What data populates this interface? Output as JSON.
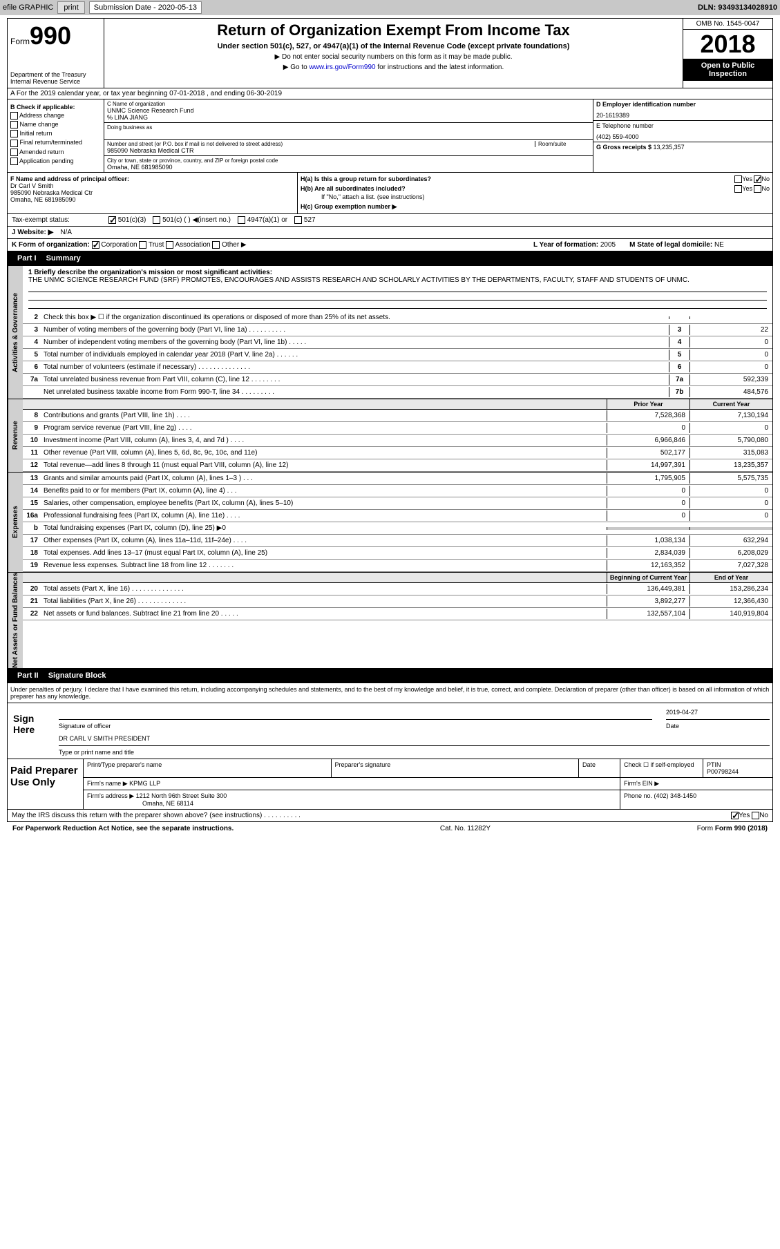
{
  "topbar": {
    "efile": "efile GRAPHIC",
    "print": "print",
    "subdate_label": "Submission Date - ",
    "subdate": "2020-05-13",
    "dln_label": "DLN: ",
    "dln": "93493134028910"
  },
  "header": {
    "form_label": "Form",
    "form_num": "990",
    "dept": "Department of the Treasury\nInternal Revenue Service",
    "title": "Return of Organization Exempt From Income Tax",
    "subtitle": "Under section 501(c), 527, or 4947(a)(1) of the Internal Revenue Code (except private foundations)",
    "note1": "▶ Do not enter social security numbers on this form as it may be made public.",
    "note2a": "▶ Go to ",
    "note2link": "www.irs.gov/Form990",
    "note2b": " for instructions and the latest information.",
    "omb": "OMB No. 1545-0047",
    "year": "2018",
    "insp": "Open to Public Inspection"
  },
  "rowA": "A For the 2019 calendar year, or tax year beginning 07-01-2018   , and ending 06-30-2019",
  "colB": {
    "hdr": "B Check if applicable:",
    "items": [
      "Address change",
      "Name change",
      "Initial return",
      "Final return/terminated",
      "Amended return",
      "Application pending"
    ]
  },
  "colC": {
    "name_label": "C Name of organization",
    "name": "UNMC Science Research Fund",
    "care": "% LINA JIANG",
    "dba_label": "Doing business as",
    "addr_label": "Number and street (or P.O. box if mail is not delivered to street address)",
    "room_label": "Room/suite",
    "addr": "985090 Nebraska Medical CTR",
    "city_label": "City or town, state or province, country, and ZIP or foreign postal code",
    "city": "Omaha, NE  681985090"
  },
  "colD": {
    "ein_label": "D Employer identification number",
    "ein": "20-1619389",
    "tel_label": "E Telephone number",
    "tel": "(402) 559-4000",
    "gross_label": "G Gross receipts $ ",
    "gross": "13,235,357"
  },
  "secF": {
    "label": "F  Name and address of principal officer:",
    "name": "Dr Carl V Smith",
    "addr1": "985090 Nebraska Medical Ctr",
    "addr2": "Omaha, NE  681985090"
  },
  "secH": {
    "ha": "H(a)  Is this a group return for subordinates?",
    "hb": "H(b)  Are all subordinates included?",
    "hb_note": "If \"No,\" attach a list. (see instructions)",
    "hc": "H(c)  Group exemption number ▶"
  },
  "taxexempt": {
    "label": "Tax-exempt status:",
    "o1": "501(c)(3)",
    "o2": "501(c) (  ) ◀(insert no.)",
    "o3": "4947(a)(1) or",
    "o4": "527"
  },
  "website": {
    "label": "J  Website: ▶",
    "val": "N/A"
  },
  "rowK": {
    "k": "K Form of organization:",
    "kopts": [
      "Corporation",
      "Trust",
      "Association",
      "Other ▶"
    ],
    "l": "L Year of formation: ",
    "lval": "2005",
    "m": "M State of legal domicile: ",
    "mval": "NE"
  },
  "part1": {
    "hdr": "Part I",
    "title": "Summary"
  },
  "mission": {
    "q": "1  Briefly describe the organization's mission or most significant activities:",
    "text": "THE UNMC SCIENCE RESEARCH FUND (SRF) PROMOTES, ENCOURAGES AND ASSISTS RESEARCH AND SCHOLARLY ACTIVITIES BY THE DEPARTMENTS, FACULTY, STAFF AND STUDENTS OF UNMC."
  },
  "gov_lines": [
    {
      "n": "2",
      "d": "Check this box ▶ ☐ if the organization discontinued its operations or disposed of more than 25% of its net assets.",
      "box": "",
      "v": ""
    },
    {
      "n": "3",
      "d": "Number of voting members of the governing body (Part VI, line 1a)  .  .  .  .  .  .  .  .  .  .",
      "box": "3",
      "v": "22"
    },
    {
      "n": "4",
      "d": "Number of independent voting members of the governing body (Part VI, line 1b)  .  .  .  .  .",
      "box": "4",
      "v": "0"
    },
    {
      "n": "5",
      "d": "Total number of individuals employed in calendar year 2018 (Part V, line 2a)  .  .  .  .  .  .",
      "box": "5",
      "v": "0"
    },
    {
      "n": "6",
      "d": "Total number of volunteers (estimate if necessary)   .  .  .  .  .  .  .  .  .  .  .  .  .  .",
      "box": "6",
      "v": "0"
    },
    {
      "n": "7a",
      "d": "Total unrelated business revenue from Part VIII, column (C), line 12  .  .  .  .  .  .  .  .",
      "box": "7a",
      "v": "592,339"
    },
    {
      "n": "",
      "d": "Net unrelated business taxable income from Form 990-T, line 34   .  .  .  .  .  .  .  .  .",
      "box": "7b",
      "v": "484,576"
    }
  ],
  "colhdrs": {
    "prior": "Prior Year",
    "current": "Current Year"
  },
  "rev_lines": [
    {
      "n": "8",
      "d": "Contributions and grants (Part VIII, line 1h)  .  .  .  .",
      "p": "7,528,368",
      "c": "7,130,194"
    },
    {
      "n": "9",
      "d": "Program service revenue (Part VIII, line 2g)  .  .  .  .",
      "p": "0",
      "c": "0"
    },
    {
      "n": "10",
      "d": "Investment income (Part VIII, column (A), lines 3, 4, and 7d )  .  .  .  .",
      "p": "6,966,846",
      "c": "5,790,080"
    },
    {
      "n": "11",
      "d": "Other revenue (Part VIII, column (A), lines 5, 6d, 8c, 9c, 10c, and 11e)",
      "p": "502,177",
      "c": "315,083"
    },
    {
      "n": "12",
      "d": "Total revenue—add lines 8 through 11 (must equal Part VIII, column (A), line 12)",
      "p": "14,997,391",
      "c": "13,235,357"
    }
  ],
  "exp_lines": [
    {
      "n": "13",
      "d": "Grants and similar amounts paid (Part IX, column (A), lines 1–3 )  .  .  .",
      "p": "1,795,905",
      "c": "5,575,735"
    },
    {
      "n": "14",
      "d": "Benefits paid to or for members (Part IX, column (A), line 4)  .  .  .",
      "p": "0",
      "c": "0"
    },
    {
      "n": "15",
      "d": "Salaries, other compensation, employee benefits (Part IX, column (A), lines 5–10)",
      "p": "0",
      "c": "0"
    },
    {
      "n": "16a",
      "d": "Professional fundraising fees (Part IX, column (A), line 11e)  .  .  .  .",
      "p": "0",
      "c": "0"
    },
    {
      "n": "b",
      "d": "Total fundraising expenses (Part IX, column (D), line 25) ▶0",
      "p": "",
      "c": "",
      "shaded": true
    },
    {
      "n": "17",
      "d": "Other expenses (Part IX, column (A), lines 11a–11d, 11f–24e)  .  .  .  .",
      "p": "1,038,134",
      "c": "632,294"
    },
    {
      "n": "18",
      "d": "Total expenses. Add lines 13–17 (must equal Part IX, column (A), line 25)",
      "p": "2,834,039",
      "c": "6,208,029"
    },
    {
      "n": "19",
      "d": "Revenue less expenses. Subtract line 18 from line 12 .  .  .  .  .  .  .",
      "p": "12,163,352",
      "c": "7,027,328"
    }
  ],
  "na_hdrs": {
    "begin": "Beginning of Current Year",
    "end": "End of Year"
  },
  "na_lines": [
    {
      "n": "20",
      "d": "Total assets (Part X, line 16)  .  .  .  .  .  .  .  .  .  .  .  .  .  .",
      "p": "136,449,381",
      "c": "153,286,234"
    },
    {
      "n": "21",
      "d": "Total liabilities (Part X, line 26)  .  .  .  .  .  .  .  .  .  .  .  .  .",
      "p": "3,892,277",
      "c": "12,366,430"
    },
    {
      "n": "22",
      "d": "Net assets or fund balances. Subtract line 21 from line 20 .  .  .  .  .",
      "p": "132,557,104",
      "c": "140,919,804"
    }
  ],
  "part2": {
    "hdr": "Part II",
    "title": "Signature Block"
  },
  "sig": {
    "decl": "Under penalties of perjury, I declare that I have examined this return, including accompanying schedules and statements, and to the best of my knowledge and belief, it is true, correct, and complete. Declaration of preparer (other than officer) is based on all information of which preparer has any knowledge.",
    "here": "Sign Here",
    "date": "2019-04-27",
    "sig_lbl": "Signature of officer",
    "date_lbl": "Date",
    "name": "DR CARL V SMITH  PRESIDENT",
    "name_lbl": "Type or print name and title"
  },
  "prep": {
    "left": "Paid Preparer Use Only",
    "c1": "Print/Type preparer's name",
    "c2": "Preparer's signature",
    "c3": "Date",
    "c4a": "Check ☐ if self-employed",
    "c5": "PTIN",
    "ptin": "P00798244",
    "firm_lbl": "Firm's name   ▶ ",
    "firm": "KPMG LLP",
    "ein_lbl": "Firm's EIN ▶",
    "addr_lbl": "Firm's address ▶ ",
    "addr1": "1212 North 96th Street Suite 300",
    "addr2": "Omaha, NE  68114",
    "phone_lbl": "Phone no. ",
    "phone": "(402) 348-1450"
  },
  "discuss": "May the IRS discuss this return with the preparer shown above? (see instructions)  .  .  .  .  .  .  .  .  .  .",
  "footer": {
    "left": "For Paperwork Reduction Act Notice, see the separate instructions.",
    "mid": "Cat. No. 11282Y",
    "right": "Form 990 (2018)"
  },
  "vlabels": {
    "gov": "Activities & Governance",
    "rev": "Revenue",
    "exp": "Expenses",
    "na": "Net Assets or Fund Balances"
  }
}
